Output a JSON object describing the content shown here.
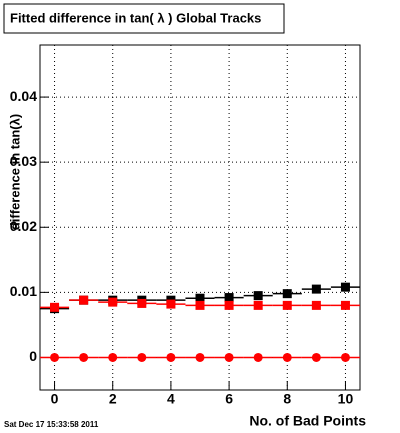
{
  "chart_data": {
    "type": "scatter",
    "title": "Fitted difference in tan( λ )  Global Tracks",
    "x_label": "No. of Bad Points",
    "y_label": "difference in tan(λ)",
    "footer": "Sat Dec 17 15:33:58 2011",
    "x": [
      0,
      1,
      2,
      3,
      4,
      5,
      6,
      7,
      8,
      9,
      10
    ],
    "series": [
      {
        "color": "#000000",
        "marker": "square",
        "values": [
          0.0075,
          0.0088,
          0.0088,
          0.0088,
          0.0088,
          0.0091,
          0.0092,
          0.0095,
          0.0098,
          0.0105,
          0.0108
        ]
      },
      {
        "color": "#ff0000",
        "marker": "square",
        "values": [
          0.0077,
          0.0088,
          0.0085,
          0.0083,
          0.0082,
          0.008,
          0.008,
          0.008,
          0.008,
          0.008,
          0.008
        ]
      },
      {
        "color": "#ff0000",
        "marker": "circle",
        "values": [
          0,
          0,
          0,
          0,
          0,
          0,
          0,
          0,
          0,
          0,
          0
        ]
      }
    ],
    "xlim": [
      -0.5,
      10.5
    ],
    "ylim": [
      -0.005,
      0.048
    ],
    "xticks": [
      0,
      2,
      4,
      6,
      8,
      10
    ],
    "yticks": [
      0,
      0.01,
      0.02,
      0.03,
      0.04
    ],
    "grid": true
  }
}
